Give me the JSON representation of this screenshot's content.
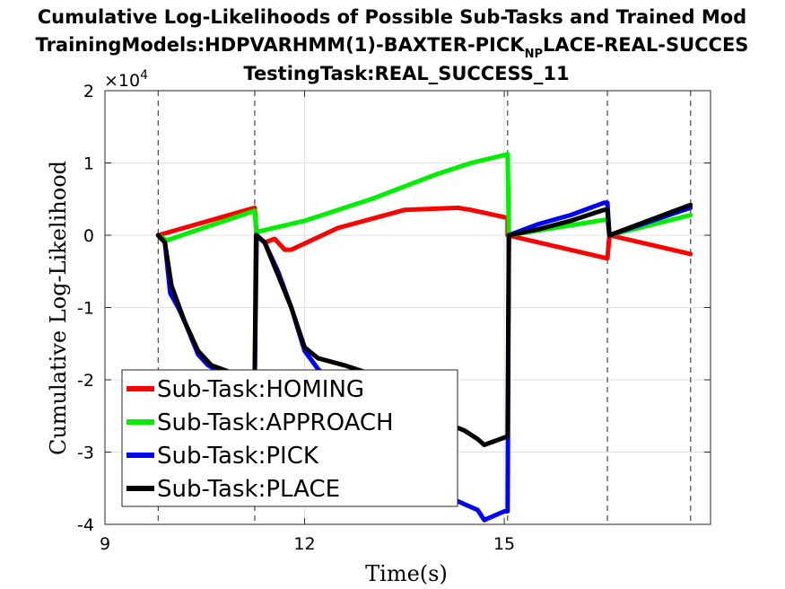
{
  "chart_data": {
    "type": "line",
    "title_line1": "Cumulative Log-Likelihoods of Possible Sub-Tasks and Trained Mod",
    "title_line2_pre": "TrainingModels:HDPVARHMM(1)-BAXTER-PICK",
    "title_line2_sub": "NP",
    "title_line2_post": "LACE-REAL-SUCCES",
    "title_line3": "TestingTask:REAL_SUCCESS_11",
    "xlabel": "Time(s)",
    "ylabel": "Cumulative Log-Likelihood",
    "exponent_label": "×10",
    "exponent_power": "4",
    "xlim": [
      9,
      18.1
    ],
    "ylim": [
      -4,
      2
    ],
    "x_ticks": [
      9,
      12,
      15
    ],
    "y_ticks": [
      2,
      1,
      0,
      -1,
      -2,
      -3,
      -4
    ],
    "grid": true,
    "legend_position": "lower-left",
    "boundaries": [
      9.8,
      11.25,
      15.05,
      16.55,
      17.8
    ],
    "series": [
      {
        "name": "Sub-Task:HOMING",
        "color": "#ff0000",
        "points": [
          [
            9.8,
            0
          ],
          [
            11.25,
            0.38
          ],
          [
            11.28,
            0
          ],
          [
            11.4,
            -0.1
          ],
          [
            11.55,
            -0.05
          ],
          [
            11.7,
            -0.2
          ],
          [
            11.8,
            -0.2
          ],
          [
            12.5,
            0.1
          ],
          [
            13.5,
            0.35
          ],
          [
            14.3,
            0.38
          ],
          [
            14.5,
            0.35
          ],
          [
            15.05,
            0.24
          ],
          [
            15.05,
            0
          ],
          [
            16.55,
            -0.32
          ],
          [
            16.58,
            0
          ],
          [
            17.8,
            -0.26
          ]
        ]
      },
      {
        "name": "Sub-Task:APPROACH",
        "color": "#00ee00",
        "points": [
          [
            9.8,
            0
          ],
          [
            9.93,
            -0.07
          ],
          [
            11.25,
            0.34
          ],
          [
            11.28,
            0
          ],
          [
            11.3,
            0.05
          ],
          [
            12,
            0.2
          ],
          [
            13,
            0.5
          ],
          [
            14,
            0.85
          ],
          [
            14.5,
            1.0
          ],
          [
            15.05,
            1.12
          ],
          [
            15.07,
            0
          ],
          [
            16.55,
            0.22
          ],
          [
            16.58,
            0
          ],
          [
            17.8,
            0.28
          ]
        ]
      },
      {
        "name": "Sub-Task:PICK",
        "color": "#0000ff",
        "points": [
          [
            9.8,
            0
          ],
          [
            9.9,
            -0.1
          ],
          [
            9.98,
            -0.8
          ],
          [
            10.1,
            -1.0
          ],
          [
            10.2,
            -1.2
          ],
          [
            10.4,
            -1.65
          ],
          [
            10.55,
            -1.8
          ],
          [
            10.8,
            -1.92
          ],
          [
            11.2,
            -1.98
          ],
          [
            11.25,
            -2.0
          ],
          [
            11.28,
            0
          ],
          [
            11.4,
            -0.1
          ],
          [
            11.6,
            -0.5
          ],
          [
            11.8,
            -1.0
          ],
          [
            12.0,
            -1.6
          ],
          [
            12.2,
            -1.85
          ],
          [
            12.6,
            -2.2
          ],
          [
            13.0,
            -2.5
          ],
          [
            13.5,
            -3.0
          ],
          [
            14.0,
            -3.55
          ],
          [
            14.4,
            -3.72
          ],
          [
            14.6,
            -3.8
          ],
          [
            14.7,
            -3.94
          ],
          [
            15.0,
            -3.82
          ],
          [
            15.05,
            -3.82
          ],
          [
            15.07,
            0
          ],
          [
            15.5,
            0.15
          ],
          [
            16.0,
            0.28
          ],
          [
            16.5,
            0.45
          ],
          [
            16.55,
            0.45
          ],
          [
            16.58,
            0
          ],
          [
            17.8,
            0.38
          ]
        ]
      },
      {
        "name": "Sub-Task:PLACE",
        "color": "#000000",
        "points": [
          [
            9.8,
            0
          ],
          [
            9.9,
            -0.1
          ],
          [
            10.0,
            -0.7
          ],
          [
            10.1,
            -0.95
          ],
          [
            10.2,
            -1.2
          ],
          [
            10.4,
            -1.6
          ],
          [
            10.6,
            -1.8
          ],
          [
            10.9,
            -1.9
          ],
          [
            11.2,
            -1.95
          ],
          [
            11.25,
            -2.0
          ],
          [
            11.27,
            0
          ],
          [
            11.4,
            -0.1
          ],
          [
            11.6,
            -0.55
          ],
          [
            11.8,
            -1.0
          ],
          [
            12.0,
            -1.55
          ],
          [
            12.2,
            -1.7
          ],
          [
            12.6,
            -1.8
          ],
          [
            13.0,
            -1.92
          ],
          [
            13.5,
            -2.2
          ],
          [
            14.0,
            -2.55
          ],
          [
            14.4,
            -2.7
          ],
          [
            14.6,
            -2.82
          ],
          [
            14.7,
            -2.9
          ],
          [
            15.0,
            -2.8
          ],
          [
            15.05,
            -2.78
          ],
          [
            15.07,
            0
          ],
          [
            15.5,
            0.08
          ],
          [
            16.0,
            0.2
          ],
          [
            16.5,
            0.35
          ],
          [
            16.55,
            0.35
          ],
          [
            16.58,
            0
          ],
          [
            17.8,
            0.42
          ]
        ]
      }
    ]
  }
}
